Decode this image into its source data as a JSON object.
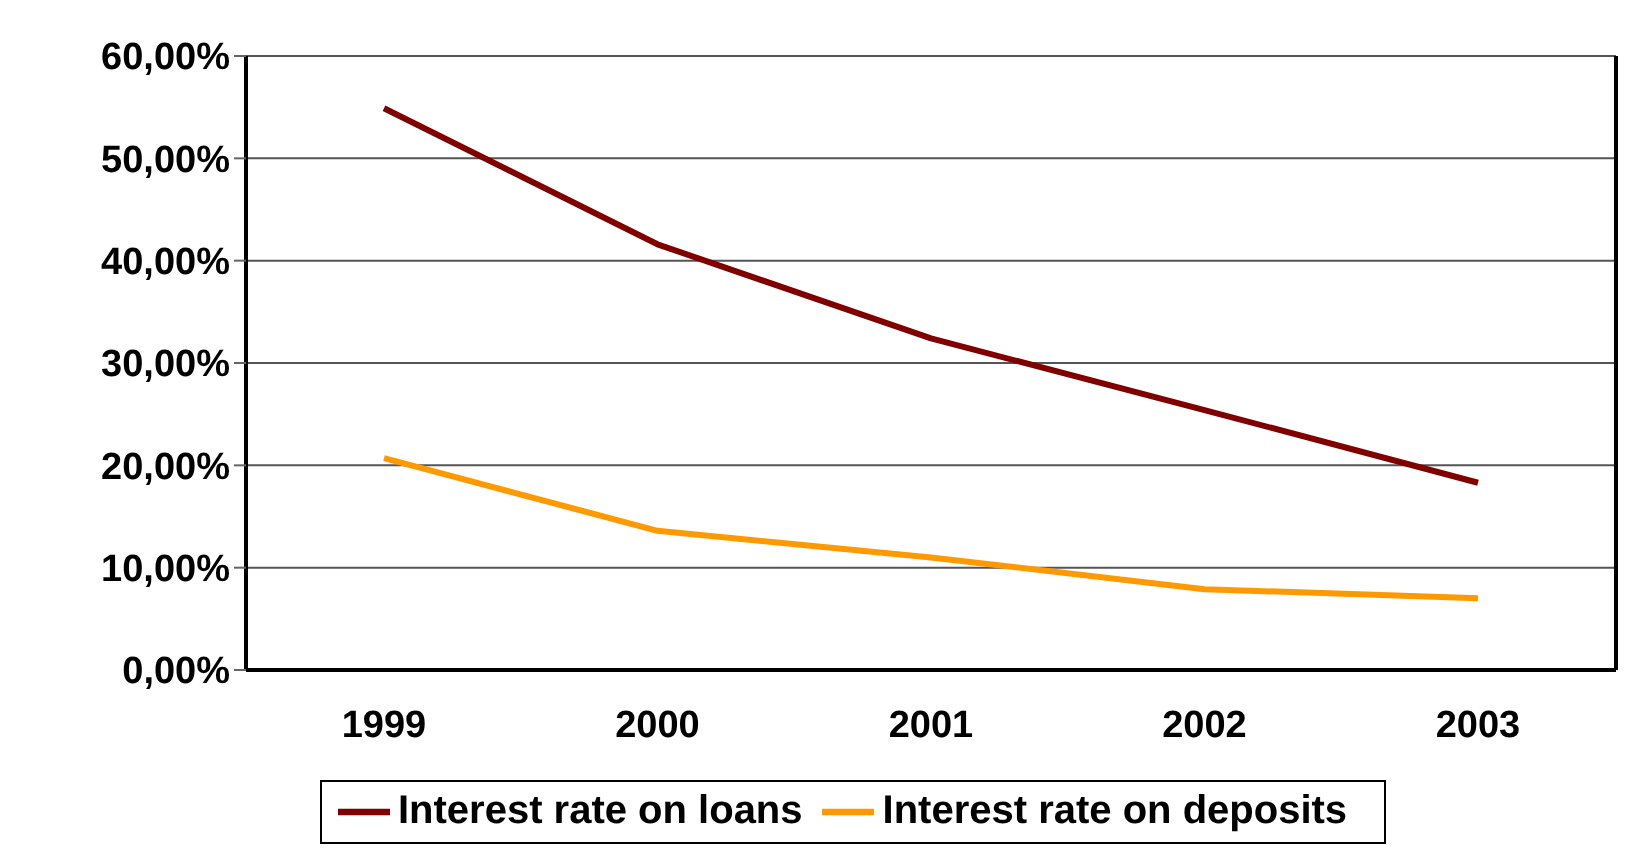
{
  "chart_data": {
    "type": "line",
    "categories": [
      "1999",
      "2000",
      "2001",
      "2002",
      "2003"
    ],
    "series": [
      {
        "name": "Interest rate on loans",
        "color": "#800000",
        "values": [
          54.9,
          41.6,
          32.4,
          25.4,
          18.3
        ]
      },
      {
        "name": "Interest rate on deposits",
        "color": "#ff9900",
        "values": [
          20.7,
          13.6,
          11.0,
          7.9,
          7.0
        ]
      }
    ],
    "ylim": [
      0,
      60
    ],
    "yticks": [
      {
        "value": 0,
        "label": "0,00%"
      },
      {
        "value": 10,
        "label": "10,00%"
      },
      {
        "value": 20,
        "label": "20,00%"
      },
      {
        "value": 30,
        "label": "30,00%"
      },
      {
        "value": 40,
        "label": "40,00%"
      },
      {
        "value": 50,
        "label": "50,00%"
      },
      {
        "value": 60,
        "label": "60,00%"
      }
    ],
    "grid": "y",
    "legend": "bottom",
    "marker": "none",
    "line_style": "solid"
  }
}
